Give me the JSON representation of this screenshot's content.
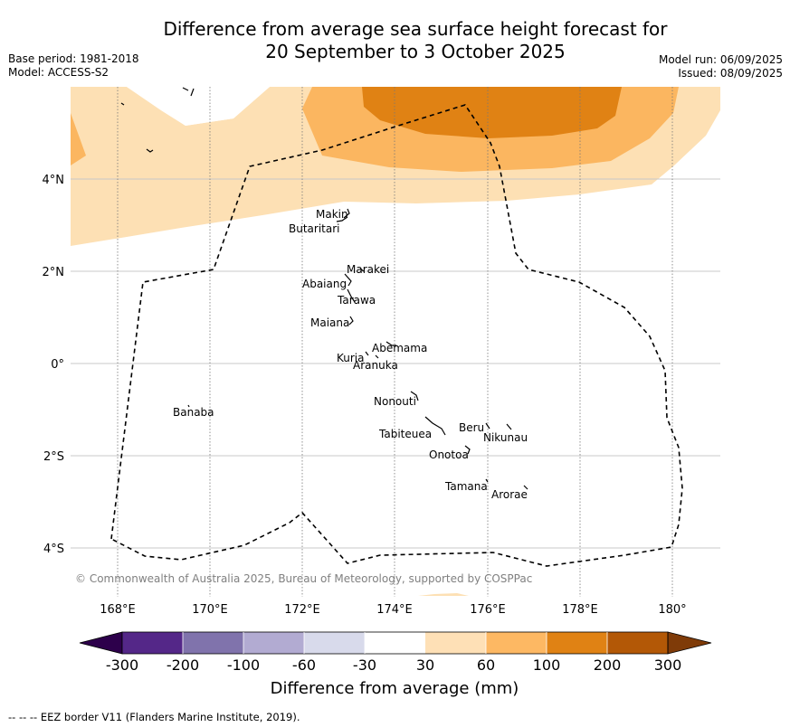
{
  "header": {
    "title_line1": "Difference from average sea surface height forecast for",
    "title_line2": "20 September to 3 October 2025",
    "base_period": "Base period: 1981-2018",
    "model": "Model: ACCESS-S2",
    "model_run": "Model run: 06/09/2025",
    "issued": "Issued: 08/09/2025"
  },
  "map": {
    "lon_ticks": [
      "168°E",
      "170°E",
      "172°E",
      "174°E",
      "176°E",
      "178°E",
      "180°"
    ],
    "lat_ticks": [
      "4°N",
      "2°N",
      "0°",
      "2°S",
      "4°S"
    ],
    "copyright": "© Commonwealth of Australia 2025, Bureau of Meteorology, supported by COSPPac",
    "islands": [
      "Makin",
      "Butaritari",
      "Marakei",
      "Abaiang",
      "Tarawa",
      "Maiana",
      "Abemama",
      "Kuria",
      "Aranuka",
      "Banaba",
      "Nonouti",
      "Tabiteuea",
      "Beru",
      "Nikunau",
      "Onotoa",
      "Tamana",
      "Arorae"
    ],
    "colors": {
      "light_orange": "#fde0b4",
      "mid_orange": "#fbb660",
      "dark_orange": "#e08214",
      "eez_line": "#000000"
    }
  },
  "colorbar": {
    "label": "Difference from average (mm)",
    "ticks": [
      "-300",
      "-200",
      "-100",
      "-60",
      "-30",
      "30",
      "60",
      "100",
      "200",
      "300"
    ],
    "colors": [
      "#2d004b",
      "#542788",
      "#8073ac",
      "#b2abd2",
      "#d8daeb",
      "#ffffff",
      "#fee0b6",
      "#fdb863",
      "#e08214",
      "#b35806",
      "#7f3b08"
    ]
  },
  "footer": {
    "legend_text": "--  --  -- EEZ border V11 (Flanders Marine Institute, 2019)."
  }
}
